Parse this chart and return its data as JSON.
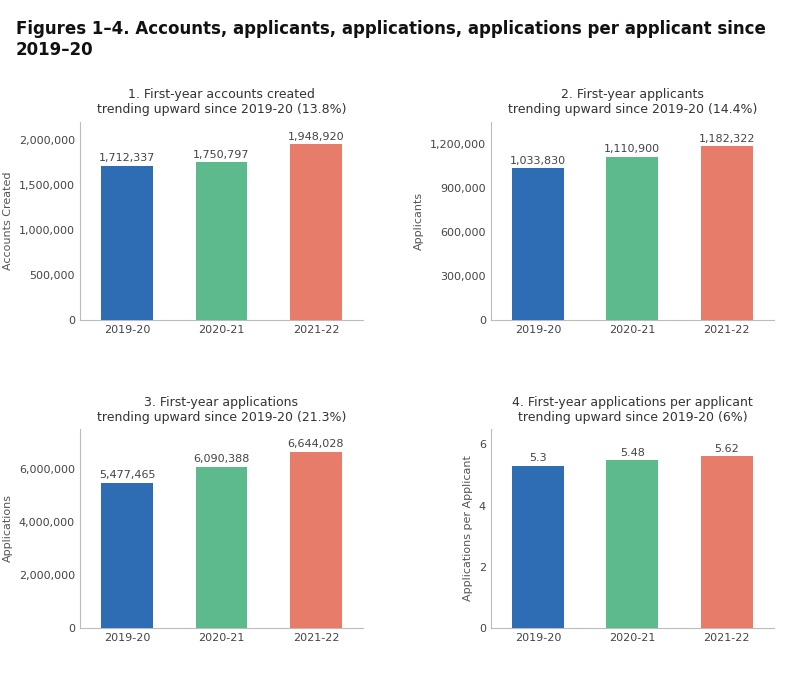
{
  "title": "Figures 1–4. Accounts, applicants, applications, applications per applicant since\n2019–20",
  "title_fontsize": 12,
  "bar_colors": [
    "#2e6db4",
    "#5dba8c",
    "#e87c6b"
  ],
  "categories": [
    "2019-20",
    "2020-21",
    "2021-22"
  ],
  "charts": [
    {
      "subtitle": "1. First-year accounts created\ntrending upward since 2019-20 (13.8%)",
      "ylabel": "Accounts Created",
      "values": [
        1712337,
        1750797,
        1948920
      ],
      "labels": [
        "1,712,337",
        "1,750,797",
        "1,948,920"
      ],
      "ylim": [
        0,
        2200000
      ],
      "yticks": [
        0,
        500000,
        1000000,
        1500000,
        2000000
      ],
      "ytick_labels": [
        "0",
        "500,000",
        "1,000,000",
        "1,500,000",
        "2,000,000"
      ]
    },
    {
      "subtitle": "2. First-year applicants\ntrending upward since 2019-20 (14.4%)",
      "ylabel": "Applicants",
      "values": [
        1033830,
        1110900,
        1182322
      ],
      "labels": [
        "1,033,830",
        "1,110,900",
        "1,182,322"
      ],
      "ylim": [
        0,
        1350000
      ],
      "yticks": [
        0,
        300000,
        600000,
        900000,
        1200000
      ],
      "ytick_labels": [
        "0",
        "300,000",
        "600,000",
        "900,000",
        "1,200,000"
      ]
    },
    {
      "subtitle": "3. First-year applications\ntrending upward since 2019-20 (21.3%)",
      "ylabel": "Applications",
      "values": [
        5477465,
        6090388,
        6644028
      ],
      "labels": [
        "5,477,465",
        "6,090,388",
        "6,644,028"
      ],
      "ylim": [
        0,
        7500000
      ],
      "yticks": [
        0,
        2000000,
        4000000,
        6000000
      ],
      "ytick_labels": [
        "0",
        "2,000,000",
        "4,000,000",
        "6,000,000"
      ]
    },
    {
      "subtitle": "4. First-year applications per applicant\ntrending upward since 2019-20 (6%)",
      "ylabel": "Applications per Applicant",
      "values": [
        5.3,
        5.48,
        5.62
      ],
      "labels": [
        "5.3",
        "5.48",
        "5.62"
      ],
      "ylim": [
        0,
        6.5
      ],
      "yticks": [
        0,
        2,
        4,
        6
      ],
      "ytick_labels": [
        "0",
        "2",
        "4",
        "6"
      ]
    }
  ],
  "bg_color": "#ffffff",
  "spine_color": "#bbbbbb",
  "label_fontsize": 8,
  "subtitle_fontsize": 9,
  "ylabel_fontsize": 8,
  "tick_fontsize": 8
}
